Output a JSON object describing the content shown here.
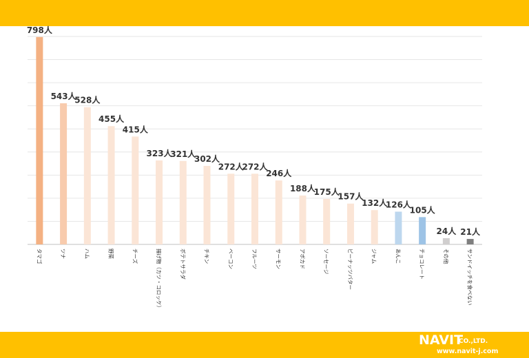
{
  "chart_data": {
    "type": "bar",
    "title": "",
    "xlabel": "",
    "ylabel": "",
    "unit": "人",
    "ylim": [
      0,
      800
    ],
    "grid": true,
    "categories": [
      "タマゴ",
      "ツナ",
      "ハム",
      "野菜",
      "チーズ",
      "揚げ物（カツ・コロッケ）",
      "ポテトサラダ",
      "チキン",
      "ベーコン",
      "フルーツ",
      "サーモン",
      "アボカド",
      "ソーセージ",
      "ピーナッツバター",
      "ジャム",
      "あんこ",
      "チョコレート",
      "その他",
      "サンドイッチを食べない"
    ],
    "values": [
      798,
      543,
      528,
      455,
      415,
      323,
      321,
      302,
      272,
      272,
      246,
      188,
      175,
      157,
      132,
      126,
      105,
      24,
      21
    ],
    "value_labels": [
      "798人",
      "543人",
      "528人",
      "455人",
      "415人",
      "323人",
      "321人",
      "302人",
      "272人",
      "272人",
      "246人",
      "188人",
      "175人",
      "157人",
      "132人",
      "126人",
      "105人",
      "24人",
      "21人"
    ],
    "bar_colors": [
      "#F4B183",
      "#F8CBAD",
      "#FBE5D6",
      "#FBE5D6",
      "#FBE5D6",
      "#FBE5D6",
      "#FBE5D6",
      "#FBE5D6",
      "#FBE5D6",
      "#FBE5D6",
      "#FBE5D6",
      "#FBE5D6",
      "#FBE5D6",
      "#FBE5D6",
      "#FBE5D6",
      "#BDD7EE",
      "#9DC3E6",
      "#D0CECE",
      "#7F7F7F"
    ]
  },
  "brand": {
    "logo_text": "NAVIT",
    "company_suffix": "CO.,LTD.",
    "url": "www.navit-j.com",
    "band_color": "#FFC000"
  }
}
